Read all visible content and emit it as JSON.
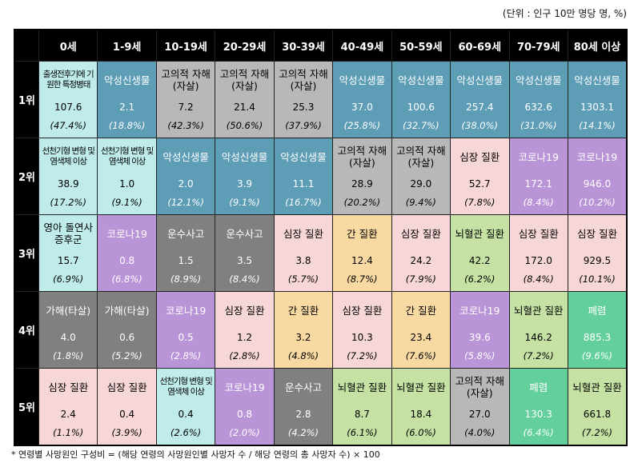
{
  "unit_note": "(단위 : 인구 10만 명당 명, %)",
  "columns": [
    "0세",
    "1-9세",
    "10-19세",
    "20-29세",
    "30-39세",
    "40-49세",
    "50-59세",
    "60-69세",
    "70-79세",
    "80세 이상"
  ],
  "rows": [
    {
      "rank": "1위",
      "cells": [
        {
          "cause": "출생전후기에 기원한 특정병태",
          "rate": "107.6",
          "share": "(47.4%)",
          "color": "#bfeceb"
        },
        {
          "cause": "악성신생물",
          "rate": "2.1",
          "share": "(18.8%)",
          "color": "#5e9db6"
        },
        {
          "cause": "고의적 자해(자살)",
          "rate": "7.2",
          "share": "(42.3%)",
          "color": "#b8b8b8"
        },
        {
          "cause": "고의적 자해(자살)",
          "rate": "21.4",
          "share": "(50.6%)",
          "color": "#b8b8b8"
        },
        {
          "cause": "고의적 자해(자살)",
          "rate": "25.3",
          "share": "(37.9%)",
          "color": "#b8b8b8"
        },
        {
          "cause": "악성신생물",
          "rate": "37.0",
          "share": "(25.8%)",
          "color": "#5e9db6"
        },
        {
          "cause": "악성신생물",
          "rate": "100.6",
          "share": "(32.7%)",
          "color": "#5e9db6"
        },
        {
          "cause": "악성신생물",
          "rate": "257.4",
          "share": "(38.0%)",
          "color": "#5e9db6"
        },
        {
          "cause": "악성신생물",
          "rate": "632.6",
          "share": "(31.0%)",
          "color": "#5e9db6"
        },
        {
          "cause": "악성신생물",
          "rate": "1303.1",
          "share": "(14.1%)",
          "color": "#5e9db6"
        }
      ]
    },
    {
      "rank": "2위",
      "cells": [
        {
          "cause": "선천기형 변형 및 염색체 이상",
          "rate": "38.9",
          "share": "(17.2%)",
          "color": "#bfeceb"
        },
        {
          "cause": "선천기형 변형 및 염색체 이상",
          "rate": "1.0",
          "share": "(9.1%)",
          "color": "#bfeceb"
        },
        {
          "cause": "악성신생물",
          "rate": "2.0",
          "share": "(12.1%)",
          "color": "#5e9db6"
        },
        {
          "cause": "악성신생물",
          "rate": "3.9",
          "share": "(9.1%)",
          "color": "#5e9db6"
        },
        {
          "cause": "악성신생물",
          "rate": "11.1",
          "share": "(16.7%)",
          "color": "#5e9db6"
        },
        {
          "cause": "고의적 자해(자살)",
          "rate": "28.9",
          "share": "(20.2%)",
          "color": "#b8b8b8"
        },
        {
          "cause": "고의적 자해(자살)",
          "rate": "29.0",
          "share": "(9.4%)",
          "color": "#b8b8b8"
        },
        {
          "cause": "심장 질환",
          "rate": "52.7",
          "share": "(7.8%)",
          "color": "#f6d6d6"
        },
        {
          "cause": "코로나19",
          "rate": "172.1",
          "share": "(8.4%)",
          "color": "#b994d6"
        },
        {
          "cause": "코로나19",
          "rate": "946.0",
          "share": "(10.2%)",
          "color": "#b994d6"
        }
      ]
    },
    {
      "rank": "3위",
      "cells": [
        {
          "cause": "영아 돌연사 증후군",
          "rate": "15.7",
          "share": "(6.9%)",
          "color": "#bfeceb"
        },
        {
          "cause": "코로나19",
          "rate": "0.8",
          "share": "(6.8%)",
          "color": "#b994d6"
        },
        {
          "cause": "운수사고",
          "rate": "1.5",
          "share": "(8.9%)",
          "color": "#808080"
        },
        {
          "cause": "운수사고",
          "rate": "3.5",
          "share": "(8.4%)",
          "color": "#808080"
        },
        {
          "cause": "심장 질환",
          "rate": "3.8",
          "share": "(5.7%)",
          "color": "#f6d6d6"
        },
        {
          "cause": "간 질환",
          "rate": "12.4",
          "share": "(8.7%)",
          "color": "#f8d9a2"
        },
        {
          "cause": "심장 질환",
          "rate": "24.2",
          "share": "(7.9%)",
          "color": "#f6d6d6"
        },
        {
          "cause": "뇌혈관 질환",
          "rate": "42.2",
          "share": "(6.2%)",
          "color": "#c5e1a3"
        },
        {
          "cause": "심장 질환",
          "rate": "172.0",
          "share": "(8.4%)",
          "color": "#f6d6d6"
        },
        {
          "cause": "심장 질환",
          "rate": "929.5",
          "share": "(10.1%)",
          "color": "#f6d6d6"
        }
      ]
    },
    {
      "rank": "4위",
      "cells": [
        {
          "cause": "가해(타살)",
          "rate": "4.0",
          "share": "(1.8%)",
          "color": "#808080"
        },
        {
          "cause": "가해(타살)",
          "rate": "0.6",
          "share": "(5.2%)",
          "color": "#808080"
        },
        {
          "cause": "코로나19",
          "rate": "0.5",
          "share": "(2.8%)",
          "color": "#b994d6"
        },
        {
          "cause": "심장 질환",
          "rate": "1.2",
          "share": "(2.8%)",
          "color": "#f6d6d6"
        },
        {
          "cause": "간 질환",
          "rate": "3.2",
          "share": "(4.8%)",
          "color": "#f8d9a2"
        },
        {
          "cause": "심장 질환",
          "rate": "10.3",
          "share": "(7.2%)",
          "color": "#f6d6d6"
        },
        {
          "cause": "간 질환",
          "rate": "23.4",
          "share": "(7.6%)",
          "color": "#f8d9a2"
        },
        {
          "cause": "코로나19",
          "rate": "39.6",
          "share": "(5.8%)",
          "color": "#b994d6"
        },
        {
          "cause": "뇌혈관 질환",
          "rate": "146.2",
          "share": "(7.2%)",
          "color": "#c5e1a3"
        },
        {
          "cause": "폐렴",
          "rate": "885.3",
          "share": "(9.6%)",
          "color": "#62cf9c"
        }
      ]
    },
    {
      "rank": "5위",
      "cells": [
        {
          "cause": "심장 질환",
          "rate": "2.4",
          "share": "(1.1%)",
          "color": "#f6d6d6"
        },
        {
          "cause": "심장 질환",
          "rate": "0.4",
          "share": "(3.9%)",
          "color": "#f6d6d6"
        },
        {
          "cause": "선천기형 변형 및 염색체 이상",
          "rate": "0.4",
          "share": "(2.6%)",
          "color": "#bfeceb"
        },
        {
          "cause": "코로나19",
          "rate": "0.8",
          "share": "(2.0%)",
          "color": "#b994d6"
        },
        {
          "cause": "운수사고",
          "rate": "2.8",
          "share": "(4.2%)",
          "color": "#808080"
        },
        {
          "cause": "뇌혈관 질환",
          "rate": "8.7",
          "share": "(6.1%)",
          "color": "#c5e1a3"
        },
        {
          "cause": "뇌혈관 질환",
          "rate": "18.4",
          "share": "(6.0%)",
          "color": "#c5e1a3"
        },
        {
          "cause": "고의적 자해(자살)",
          "rate": "27.0",
          "share": "(4.0%)",
          "color": "#b8b8b8"
        },
        {
          "cause": "폐렴",
          "rate": "130.3",
          "share": "(6.4%)",
          "color": "#62cf9c"
        },
        {
          "cause": "뇌혈관 질환",
          "rate": "661.8",
          "share": "(7.2%)",
          "color": "#c5e1a3"
        }
      ]
    }
  ],
  "footnote": "* 연령별 사망원인 구성비 = (해당 연령의 사망원인별 사망자 수 / 해당 연령의 총 사망자 수) × 100"
}
